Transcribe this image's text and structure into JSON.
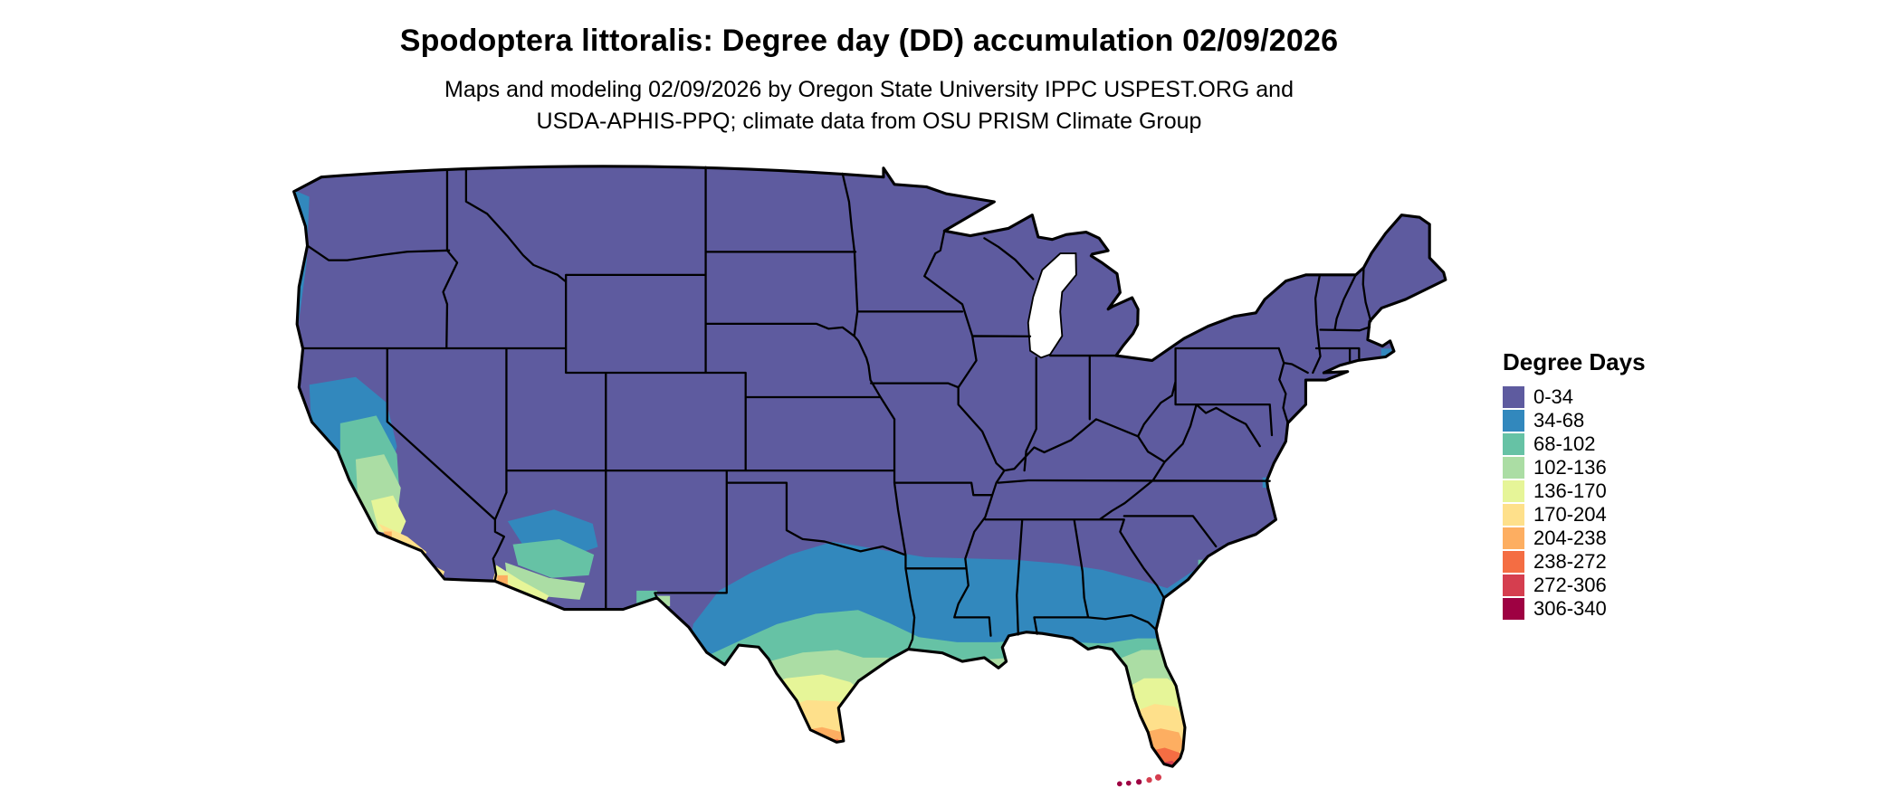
{
  "title": "Spodoptera littoralis: Degree day (DD) accumulation 02/09/2026",
  "subtitle_line1": "Maps and modeling 02/09/2026 by Oregon State University IPPC USPEST.ORG and",
  "subtitle_line2": "USDA-APHIS-PPQ; climate data from OSU PRISM Climate Group",
  "map": {
    "region": "Continental United States",
    "border_color": "#000000",
    "water_color": "#ffffff"
  },
  "legend": {
    "title": "Degree Days",
    "items": [
      {
        "label": "0-34",
        "color": "#5e5b9f"
      },
      {
        "label": "34-68",
        "color": "#3288bd"
      },
      {
        "label": "68-102",
        "color": "#66c2a5"
      },
      {
        "label": "102-136",
        "color": "#abdda4"
      },
      {
        "label": "136-170",
        "color": "#e6f598"
      },
      {
        "label": "170-204",
        "color": "#fee08b"
      },
      {
        "label": "204-238",
        "color": "#fdae61"
      },
      {
        "label": "238-272",
        "color": "#f46d43"
      },
      {
        "label": "272-306",
        "color": "#d53e4f"
      },
      {
        "label": "306-340",
        "color": "#9e0142"
      }
    ]
  }
}
